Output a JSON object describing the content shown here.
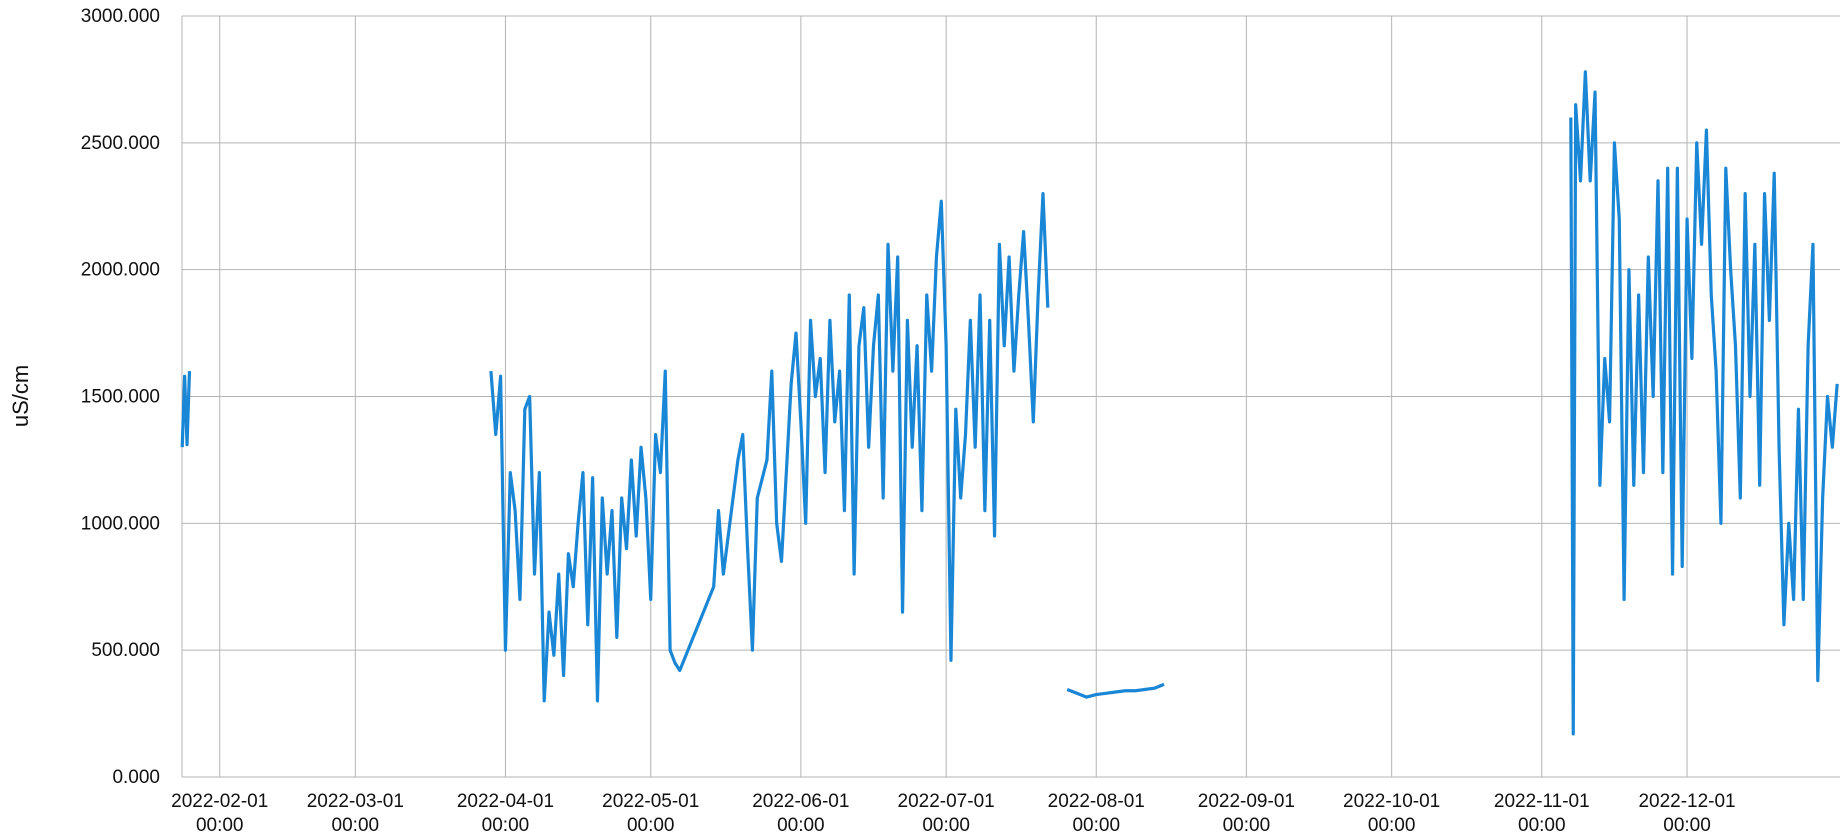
{
  "chart_data": {
    "type": "line",
    "y_label": "uS/cm",
    "xlim": [
      "2022-01-24 05:00",
      "2023-01-01 14:00"
    ],
    "xticks": [
      "2022-02-01 00:00",
      "2022-03-01 00:00",
      "2022-04-01 00:00",
      "2022-05-01 00:00",
      "2022-06-01 00:00",
      "2022-07-01 00:00",
      "2022-08-01 00:00",
      "2022-09-01 00:00",
      "2022-10-01 00:00",
      "2022-11-01 00:00",
      "2022-12-01 00:00"
    ],
    "ylim": [
      0,
      3000
    ],
    "yticks": [
      {
        "value": 0,
        "label": "0.000"
      },
      {
        "value": 500,
        "label": "500.000"
      },
      {
        "value": 1000,
        "label": "1000.000"
      },
      {
        "value": 1500,
        "label": "1500.000"
      },
      {
        "value": 2000,
        "label": "2000.000"
      },
      {
        "value": 2500,
        "label": "2500.000"
      },
      {
        "value": 3000,
        "label": "3000.000"
      }
    ],
    "grid": true,
    "series": [
      {
        "color": "#1a86d6",
        "x": [
          "2022-01-24 06:00",
          "2022-01-24 18:00",
          "2022-01-25 06:00",
          "2022-01-25 18:00",
          "2022-02-20 00:00",
          "2022-03-29 00:00",
          "2022-03-30 00:00",
          "2022-03-31 00:00",
          "2022-04-01 00:00",
          "2022-04-02 00:00",
          "2022-04-03 00:00",
          "2022-04-04 00:00",
          "2022-04-05 00:00",
          "2022-04-06 00:00",
          "2022-04-07 00:00",
          "2022-04-08 00:00",
          "2022-04-09 00:00",
          "2022-04-10 00:00",
          "2022-04-11 00:00",
          "2022-04-12 00:00",
          "2022-04-13 00:00",
          "2022-04-14 00:00",
          "2022-04-15 00:00",
          "2022-04-16 00:00",
          "2022-04-17 00:00",
          "2022-04-18 00:00",
          "2022-04-19 00:00",
          "2022-04-20 00:00",
          "2022-04-21 00:00",
          "2022-04-22 00:00",
          "2022-04-23 00:00",
          "2022-04-24 00:00",
          "2022-04-25 00:00",
          "2022-04-26 00:00",
          "2022-04-27 00:00",
          "2022-04-28 00:00",
          "2022-04-29 00:00",
          "2022-04-30 00:00",
          "2022-05-01 00:00",
          "2022-05-02 00:00",
          "2022-05-03 00:00",
          "2022-05-04 00:00",
          "2022-05-05 00:00",
          "2022-05-06 00:00",
          "2022-05-07 00:00",
          "2022-05-14 00:00",
          "2022-05-15 00:00",
          "2022-05-16 00:00",
          "2022-05-19 00:00",
          "2022-05-20 00:00",
          "2022-05-21 00:00",
          "2022-05-22 00:00",
          "2022-05-23 00:00",
          "2022-05-25 00:00",
          "2022-05-26 00:00",
          "2022-05-27 00:00",
          "2022-05-28 00:00",
          "2022-05-29 00:00",
          "2022-05-30 00:00",
          "2022-05-31 00:00",
          "2022-06-01 00:00",
          "2022-06-02 00:00",
          "2022-06-03 00:00",
          "2022-06-04 00:00",
          "2022-06-05 00:00",
          "2022-06-06 00:00",
          "2022-06-07 00:00",
          "2022-06-08 00:00",
          "2022-06-09 00:00",
          "2022-06-10 00:00",
          "2022-06-11 00:00",
          "2022-06-12 00:00",
          "2022-06-13 00:00",
          "2022-06-14 00:00",
          "2022-06-15 00:00",
          "2022-06-16 00:00",
          "2022-06-17 00:00",
          "2022-06-18 00:00",
          "2022-06-19 00:00",
          "2022-06-20 00:00",
          "2022-06-21 00:00",
          "2022-06-22 00:00",
          "2022-06-23 00:00",
          "2022-06-24 00:00",
          "2022-06-25 00:00",
          "2022-06-26 00:00",
          "2022-06-27 00:00",
          "2022-06-28 00:00",
          "2022-06-29 00:00",
          "2022-06-30 00:00",
          "2022-07-01 00:00",
          "2022-07-02 00:00",
          "2022-07-03 00:00",
          "2022-07-04 00:00",
          "2022-07-05 00:00",
          "2022-07-06 00:00",
          "2022-07-07 00:00",
          "2022-07-08 00:00",
          "2022-07-09 00:00",
          "2022-07-10 00:00",
          "2022-07-11 00:00",
          "2022-07-12 00:00",
          "2022-07-13 00:00",
          "2022-07-14 00:00",
          "2022-07-15 00:00",
          "2022-07-16 00:00",
          "2022-07-17 00:00",
          "2022-07-18 00:00",
          "2022-07-19 00:00",
          "2022-07-20 00:00",
          "2022-07-21 00:00",
          "2022-07-22 00:00",
          "2022-07-24 00:00",
          "2022-07-26 00:00",
          "2022-07-28 00:00",
          "2022-07-30 00:00",
          "2022-08-01 00:00",
          "2022-08-03 00:00",
          "2022-08-05 00:00",
          "2022-08-07 00:00",
          "2022-08-09 00:00",
          "2022-08-11 00:00",
          "2022-08-13 00:00",
          "2022-08-15 00:00",
          "2022-09-20 00:00",
          "2022-11-07 00:00",
          "2022-11-07 12:00",
          "2022-11-08 00:00",
          "2022-11-09 00:00",
          "2022-11-10 00:00",
          "2022-11-11 00:00",
          "2022-11-12 00:00",
          "2022-11-13 00:00",
          "2022-11-14 00:00",
          "2022-11-15 00:00",
          "2022-11-16 00:00",
          "2022-11-17 00:00",
          "2022-11-18 00:00",
          "2022-11-19 00:00",
          "2022-11-20 00:00",
          "2022-11-21 00:00",
          "2022-11-22 00:00",
          "2022-11-23 00:00",
          "2022-11-24 00:00",
          "2022-11-25 00:00",
          "2022-11-26 00:00",
          "2022-11-27 00:00",
          "2022-11-28 00:00",
          "2022-11-29 00:00",
          "2022-11-30 00:00",
          "2022-12-01 00:00",
          "2022-12-02 00:00",
          "2022-12-03 00:00",
          "2022-12-04 00:00",
          "2022-12-05 00:00",
          "2022-12-06 00:00",
          "2022-12-07 00:00",
          "2022-12-08 00:00",
          "2022-12-09 00:00",
          "2022-12-10 00:00",
          "2022-12-11 00:00",
          "2022-12-12 00:00",
          "2022-12-13 00:00",
          "2022-12-14 00:00",
          "2022-12-15 00:00",
          "2022-12-16 00:00",
          "2022-12-17 00:00",
          "2022-12-18 00:00",
          "2022-12-19 00:00",
          "2022-12-20 00:00",
          "2022-12-21 00:00",
          "2022-12-22 00:00",
          "2022-12-23 00:00",
          "2022-12-24 00:00",
          "2022-12-25 00:00",
          "2022-12-26 00:00",
          "2022-12-27 00:00",
          "2022-12-28 00:00",
          "2022-12-29 00:00",
          "2022-12-30 00:00",
          "2022-12-31 00:00",
          "2023-01-01 00:00"
        ],
        "values": [
          1300,
          1580,
          1310,
          1600,
          null,
          1600,
          1350,
          1580,
          500,
          1200,
          1050,
          700,
          1450,
          1500,
          800,
          1200,
          300,
          650,
          480,
          800,
          400,
          880,
          750,
          1000,
          1200,
          600,
          1180,
          300,
          1100,
          800,
          1050,
          550,
          1100,
          900,
          1250,
          950,
          1300,
          1100,
          700,
          1350,
          1200,
          1600,
          500,
          450,
          420,
          750,
          1050,
          800,
          1250,
          1350,
          900,
          500,
          1100,
          1250,
          1600,
          1000,
          850,
          1200,
          1550,
          1750,
          1400,
          1000,
          1800,
          1500,
          1650,
          1200,
          1800,
          1400,
          1600,
          1050,
          1900,
          800,
          1700,
          1850,
          1300,
          1700,
          1900,
          1100,
          2100,
          1600,
          2050,
          650,
          1800,
          1300,
          1700,
          1050,
          1900,
          1600,
          2050,
          2270,
          1700,
          460,
          1450,
          1100,
          1350,
          1800,
          1300,
          1900,
          1050,
          1800,
          950,
          2100,
          1700,
          2050,
          1600,
          1900,
          2150,
          1800,
          1400,
          1900,
          2300,
          1850,
          null,
          345,
          330,
          315,
          325,
          330,
          335,
          340,
          340,
          345,
          350,
          365,
          null,
          2600,
          170,
          2650,
          2350,
          2780,
          2350,
          2700,
          1150,
          1650,
          1400,
          2500,
          2200,
          700,
          2000,
          1150,
          1900,
          1200,
          2050,
          1500,
          2350,
          1200,
          2400,
          800,
          2400,
          830,
          2200,
          1650,
          2500,
          2100,
          2550,
          1900,
          1600,
          1000,
          2400,
          2000,
          1700,
          1100,
          2300,
          1500,
          2100,
          1150,
          2300,
          1800,
          2380,
          1300,
          600,
          1000,
          700,
          1450,
          700,
          1700,
          2100,
          380,
          1100,
          1500,
          1300,
          1550
        ]
      }
    ]
  }
}
